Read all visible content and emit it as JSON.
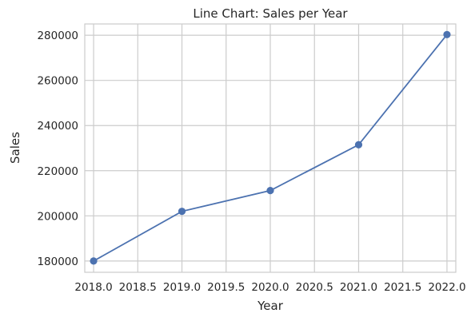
{
  "chart_data": {
    "type": "line",
    "title": "Line Chart: Sales per Year",
    "xlabel": "Year",
    "ylabel": "Sales",
    "x": [
      2018,
      2019,
      2020,
      2021,
      2022
    ],
    "series": [
      {
        "values": [
          180000,
          202000,
          211200,
          231500,
          280300
        ],
        "color": "#4c72b0",
        "marker": "circle"
      }
    ],
    "xlim": [
      2017.9,
      2022.1
    ],
    "ylim": [
      175000,
      285000
    ],
    "x_ticks": [
      2018.0,
      2018.5,
      2019.0,
      2019.5,
      2020.0,
      2020.5,
      2021.0,
      2021.5,
      2022.0
    ],
    "x_tick_labels": [
      "2018.0",
      "2018.5",
      "2019.0",
      "2019.5",
      "2020.0",
      "2020.5",
      "2021.0",
      "2021.5",
      "2022.0"
    ],
    "y_ticks": [
      180000,
      200000,
      220000,
      240000,
      260000,
      280000
    ],
    "y_tick_labels": [
      "180000",
      "200000",
      "220000",
      "240000",
      "260000",
      "280000"
    ],
    "grid": true,
    "legend": false
  }
}
